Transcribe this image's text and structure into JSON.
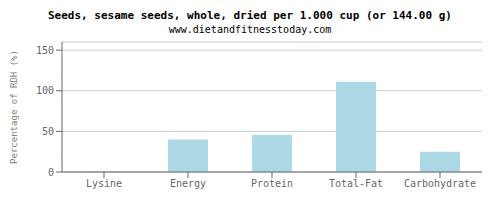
{
  "chart_data": {
    "type": "bar",
    "title": "Seeds, sesame seeds, whole, dried per 1.000 cup (or 144.00 g)",
    "subtitle": "www.dietandfitnesstoday.com",
    "categories": [
      "Lysine",
      "Energy",
      "Protein",
      "Total-Fat",
      "Carbohydrate"
    ],
    "values": [
      0.5,
      40,
      46,
      111,
      25
    ],
    "color": "#add8e6",
    "ylabel": "Percentage of RDH (%)",
    "ylim": [
      0,
      160
    ],
    "yticks": [
      0,
      50,
      100,
      150
    ],
    "grid": true
  }
}
